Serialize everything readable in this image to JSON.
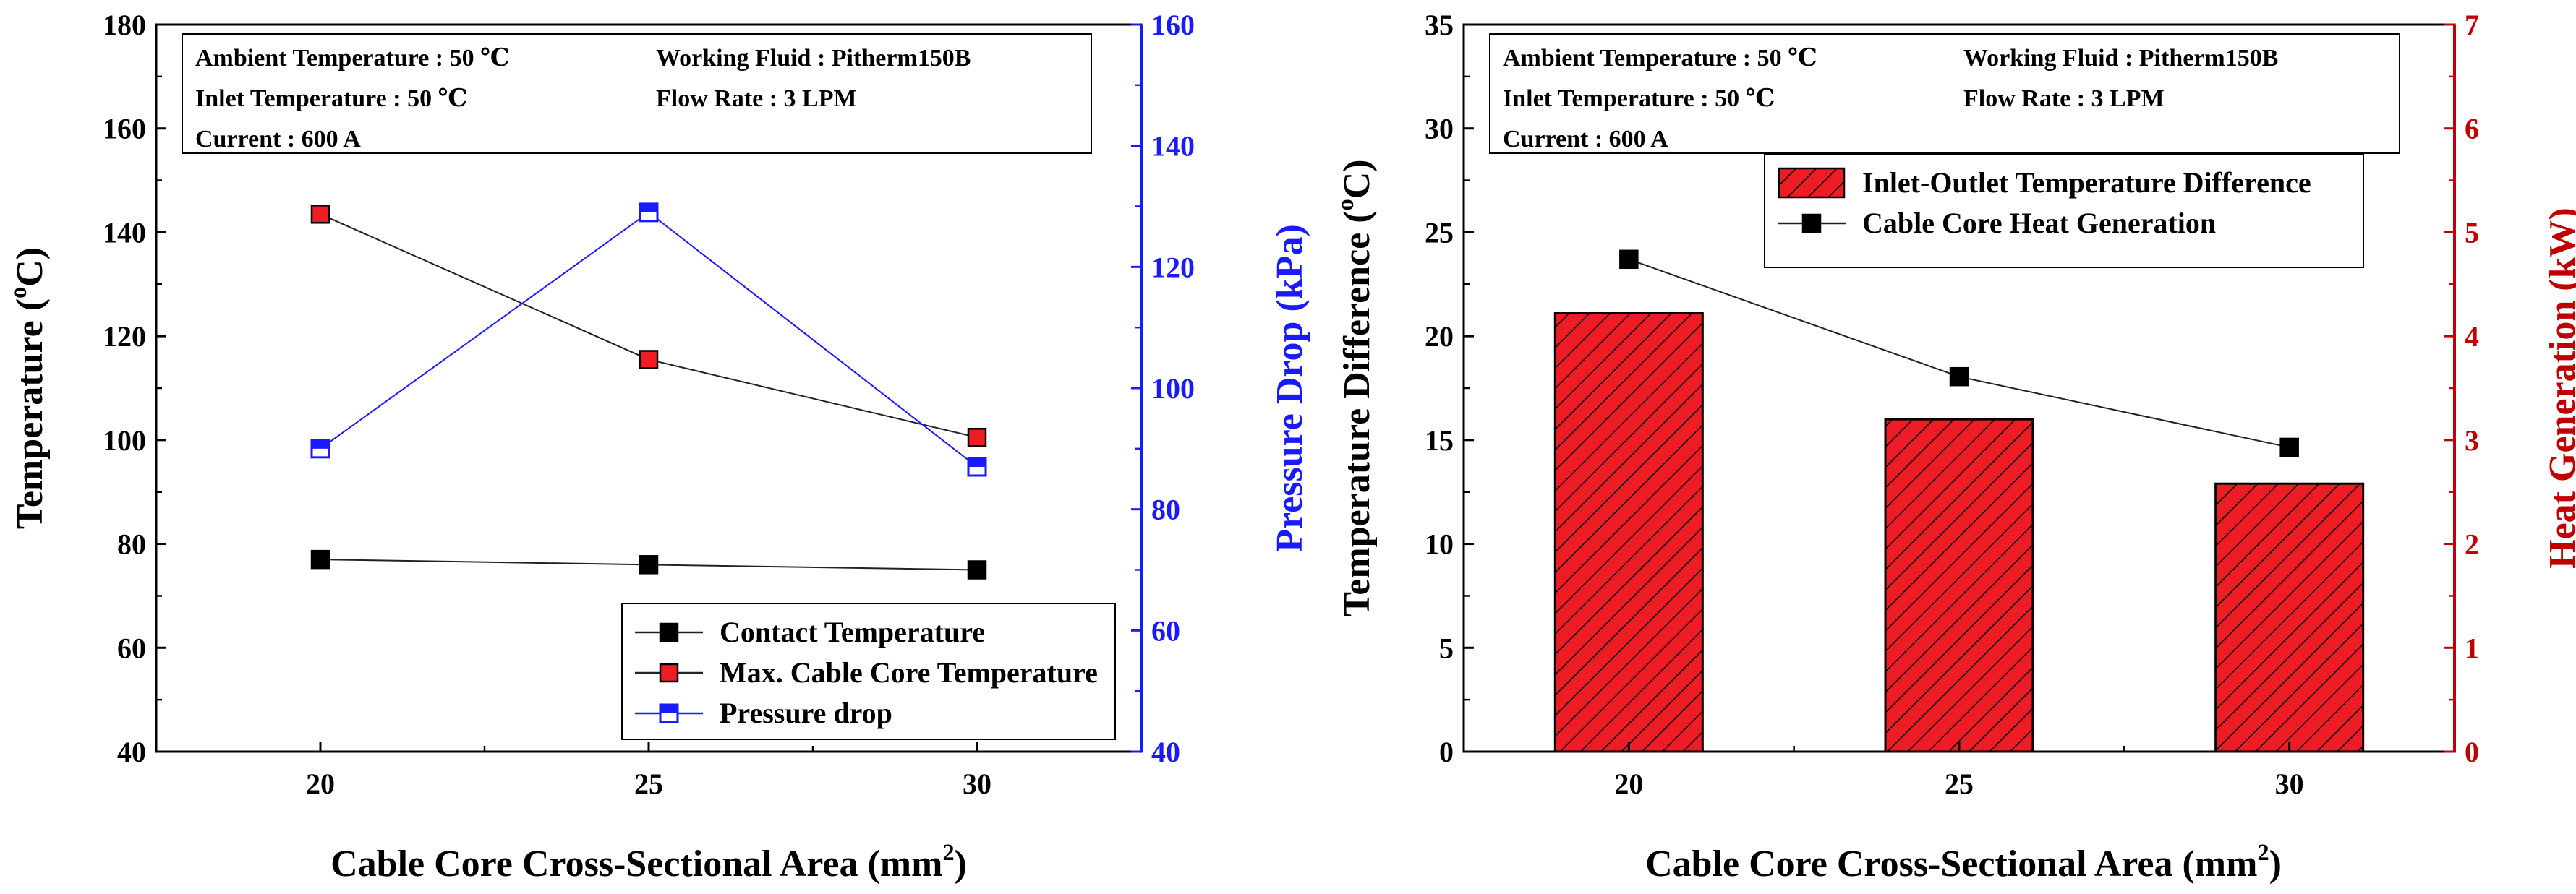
{
  "chart_data": [
    {
      "type": "line",
      "id": "left",
      "xlabel": "Cable Core Cross-Sectional Area (mm",
      "xlabel_sup": "2",
      "xlabel_tail": ")",
      "ylabel": "Temperature (",
      "ylabel_sup": "o",
      "ylabel_tail": "C)",
      "ylabel_right": "Pressure Drop (kPa)",
      "categories": [
        "20",
        "25",
        "30"
      ],
      "xlim": [
        17.5,
        32.5
      ],
      "x": [
        20,
        25,
        30
      ],
      "ylim": [
        40,
        180
      ],
      "yticks": [
        "40",
        "60",
        "80",
        "100",
        "120",
        "140",
        "160",
        "180"
      ],
      "ylim_right": [
        40,
        160
      ],
      "yticks_right": [
        "40",
        "60",
        "80",
        "100",
        "120",
        "140",
        "160"
      ],
      "series": [
        {
          "name": "Contact Temperature",
          "axis": "left",
          "marker": "filled",
          "values": [
            77,
            76,
            75
          ]
        },
        {
          "name": "Max. Cable Core Temperature",
          "axis": "left",
          "marker": "filled",
          "values": [
            143.5,
            115.5,
            100.5
          ]
        },
        {
          "name": "Pressure drop",
          "axis": "right",
          "marker": "half",
          "values": [
            90,
            129,
            87
          ]
        }
      ],
      "legend_position": "bottom-right",
      "info": [
        "Ambient Temperature : 50 ℃",
        "Working Fluid : Pitherm150B",
        "Inlet Temperature : 50 ℃",
        "Flow Rate : 3 LPM",
        "Current : 600 A"
      ]
    },
    {
      "type": "bar",
      "id": "right",
      "xlabel": "Cable Core Cross-Sectional Area (mm",
      "xlabel_sup": "2",
      "xlabel_tail": ")",
      "ylabel": "Temperature Difference (",
      "ylabel_sup": "o",
      "ylabel_tail": "C)",
      "ylabel_right": "Heat Generation (kW)",
      "categories": [
        "20",
        "25",
        "30"
      ],
      "xlim": [
        17.5,
        32.5
      ],
      "x": [
        20,
        25,
        30
      ],
      "ylim": [
        0,
        35
      ],
      "yticks": [
        "0",
        "5",
        "10",
        "15",
        "20",
        "25",
        "30",
        "35"
      ],
      "ylim_right": [
        0,
        7
      ],
      "yticks_right": [
        "0",
        "1",
        "2",
        "3",
        "4",
        "5",
        "6",
        "7"
      ],
      "series": [
        {
          "name": "Inlet-Outlet Temperature Difference",
          "axis": "left",
          "kind": "bar",
          "values": [
            21.1,
            16.0,
            12.9
          ]
        },
        {
          "name": "Cable Core Heat Generation",
          "axis": "right",
          "kind": "line",
          "values": [
            4.74,
            3.61,
            2.93
          ]
        }
      ],
      "legend_position": "top-right",
      "info": [
        "Ambient Temperature : 50 ℃",
        "Working Fluid : Pitherm150B",
        "Inlet Temperature : 50 ℃",
        "Flow Rate : 3 LPM",
        "Current : 600 A"
      ]
    }
  ],
  "colors": {
    "black": "#000000",
    "red": "#ee1c24",
    "blue": "#1a1aff",
    "dark_red": "#c00000",
    "line": "#222222"
  }
}
